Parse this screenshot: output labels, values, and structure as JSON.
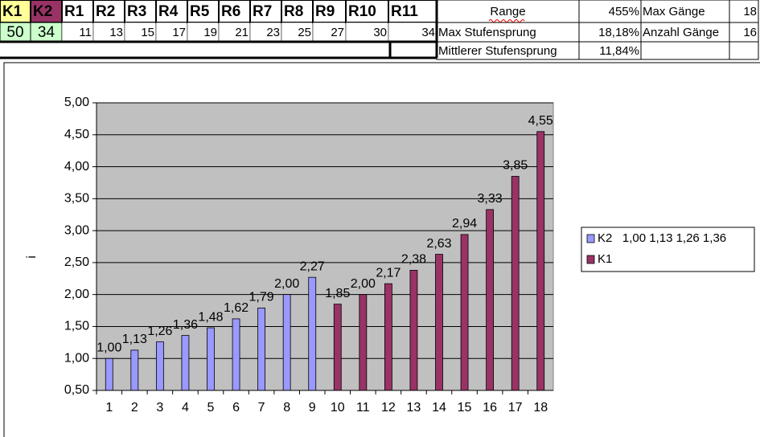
{
  "sheet": {
    "headers": [
      "K1",
      "K2",
      "R1",
      "R2",
      "R3",
      "R4",
      "R5",
      "R6",
      "R7",
      "R8",
      "R9",
      "R10",
      "R11"
    ],
    "values": [
      50,
      34,
      11,
      13,
      15,
      17,
      19,
      21,
      23,
      25,
      27,
      30,
      34
    ],
    "stats": [
      [
        "Range",
        "455%",
        "Max Gänge",
        18
      ],
      [
        "Max Stufensprung",
        "18,18%",
        "Anzahl Gänge",
        16
      ],
      [
        "Mittlerer Stufensprung",
        "11,84%"
      ]
    ]
  },
  "chart_data": {
    "type": "bar",
    "y_label": "i",
    "categories": [
      "1",
      "2",
      "3",
      "4",
      "5",
      "6",
      "7",
      "8",
      "9",
      "10",
      "11",
      "12",
      "13",
      "14",
      "15",
      "16",
      "17",
      "18"
    ],
    "series": [
      {
        "name": "K2   1,00 1,13 1,26 1,36",
        "color": "#9999ff",
        "values": [
          1.0,
          1.13,
          1.26,
          1.36,
          1.48,
          1.62,
          1.79,
          2.0,
          2.27,
          null,
          null,
          null,
          null,
          null,
          null,
          null,
          null,
          null
        ],
        "value_labels": [
          "1,00",
          "1,13",
          "1,26",
          "1,36",
          "1,48",
          "1,62",
          "1,79",
          "2,00",
          "2,27",
          null,
          null,
          null,
          null,
          null,
          null,
          null,
          null,
          null
        ]
      },
      {
        "name": "K1",
        "color": "#993366",
        "values": [
          null,
          null,
          null,
          null,
          null,
          null,
          null,
          null,
          null,
          1.85,
          2.0,
          2.17,
          2.38,
          2.63,
          2.94,
          3.33,
          3.85,
          4.55
        ],
        "value_labels": [
          null,
          null,
          null,
          null,
          null,
          null,
          null,
          null,
          null,
          "1,85",
          "2,00",
          "2,17",
          "2,38",
          "2,63",
          "2,94",
          "3,33",
          "3,85",
          "4,55"
        ]
      }
    ],
    "ylim": [
      0.5,
      5
    ],
    "yticks": [
      {
        "value": 0.5,
        "label": "0,50"
      },
      {
        "value": 1,
        "label": "1,00"
      },
      {
        "value": 1.5,
        "label": "1,50"
      },
      {
        "value": 2,
        "label": "2,00"
      },
      {
        "value": 2.5,
        "label": "2,50"
      },
      {
        "value": 3,
        "label": "3,00"
      },
      {
        "value": 3.5,
        "label": "3,50"
      },
      {
        "value": 4,
        "label": "4,00"
      },
      {
        "value": 4.5,
        "label": "4,50"
      },
      {
        "value": 5,
        "label": "5,00"
      }
    ],
    "grid": true,
    "legend": "right",
    "plot_background": "#c0c0c0"
  }
}
